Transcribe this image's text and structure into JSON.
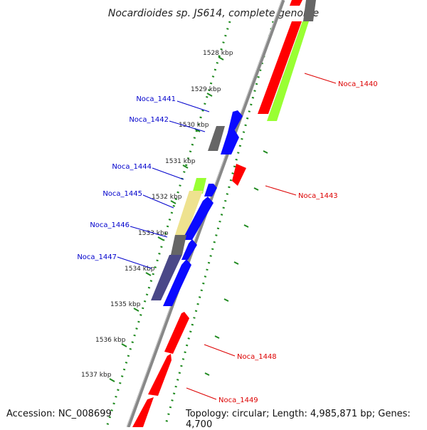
{
  "title": "Nocardioides sp. JS614, complete genome",
  "footer": {
    "accession": "Accession: NC_008699",
    "topology": "Topology: circular; Length: 4,985,871 bp; Genes: 4,700"
  },
  "colors": {
    "background": "#ffffff",
    "axis": "#8a8a8a",
    "tick_marks": "#1f8a1f",
    "label_blue": "#0000cc",
    "label_red": "#dd0000",
    "gene_red": "#ff0000",
    "gene_blue": "#0a0aff",
    "gene_green": "#99ff33",
    "gene_gray": "#666666",
    "gene_khaki": "#eee28f",
    "gene_slate": "#4a4888"
  },
  "ruler": {
    "ticks": [
      "1528 kbp",
      "1529 kbp",
      "1530 kbp",
      "1531 kbp",
      "1532 kbp",
      "1533 kbp",
      "1534 kbp",
      "1535 kbp",
      "1536 kbp",
      "1537 kbp"
    ]
  },
  "gene_labels": [
    {
      "name": "Noca_1440",
      "color": "red"
    },
    {
      "name": "Noca_1441",
      "color": "blue"
    },
    {
      "name": "Noca_1442",
      "color": "blue"
    },
    {
      "name": "Noca_1443",
      "color": "red"
    },
    {
      "name": "Noca_1444",
      "color": "blue"
    },
    {
      "name": "Noca_1445",
      "color": "blue"
    },
    {
      "name": "Noca_1446",
      "color": "blue"
    },
    {
      "name": "Noca_1447",
      "color": "blue"
    },
    {
      "name": "Noca_1448",
      "color": "red"
    },
    {
      "name": "Noca_1449",
      "color": "red"
    }
  ],
  "features": [
    {
      "fill": "gene_red",
      "strand": "outer"
    },
    {
      "fill": "gene_green",
      "strand": "outer2"
    },
    {
      "fill": "gene_blue",
      "strand": "inner"
    },
    {
      "fill": "gene_gray",
      "strand": "inner2"
    },
    {
      "fill": "gene_blue",
      "strand": "inner"
    },
    {
      "fill": "gene_red",
      "strand": "outer"
    },
    {
      "fill": "gene_green",
      "strand": "inner2"
    },
    {
      "fill": "gene_blue",
      "strand": "inner"
    },
    {
      "fill": "gene_khaki",
      "strand": "inner2"
    },
    {
      "fill": "gene_blue",
      "strand": "inner"
    },
    {
      "fill": "gene_gray",
      "strand": "inner2"
    },
    {
      "fill": "gene_blue",
      "strand": "inner"
    },
    {
      "fill": "gene_slate",
      "strand": "inner2"
    },
    {
      "fill": "gene_blue",
      "strand": "inner"
    },
    {
      "fill": "gene_red",
      "strand": "inner"
    },
    {
      "fill": "gene_red",
      "strand": "inner"
    },
    {
      "fill": "gene_red",
      "strand": "inner"
    }
  ]
}
